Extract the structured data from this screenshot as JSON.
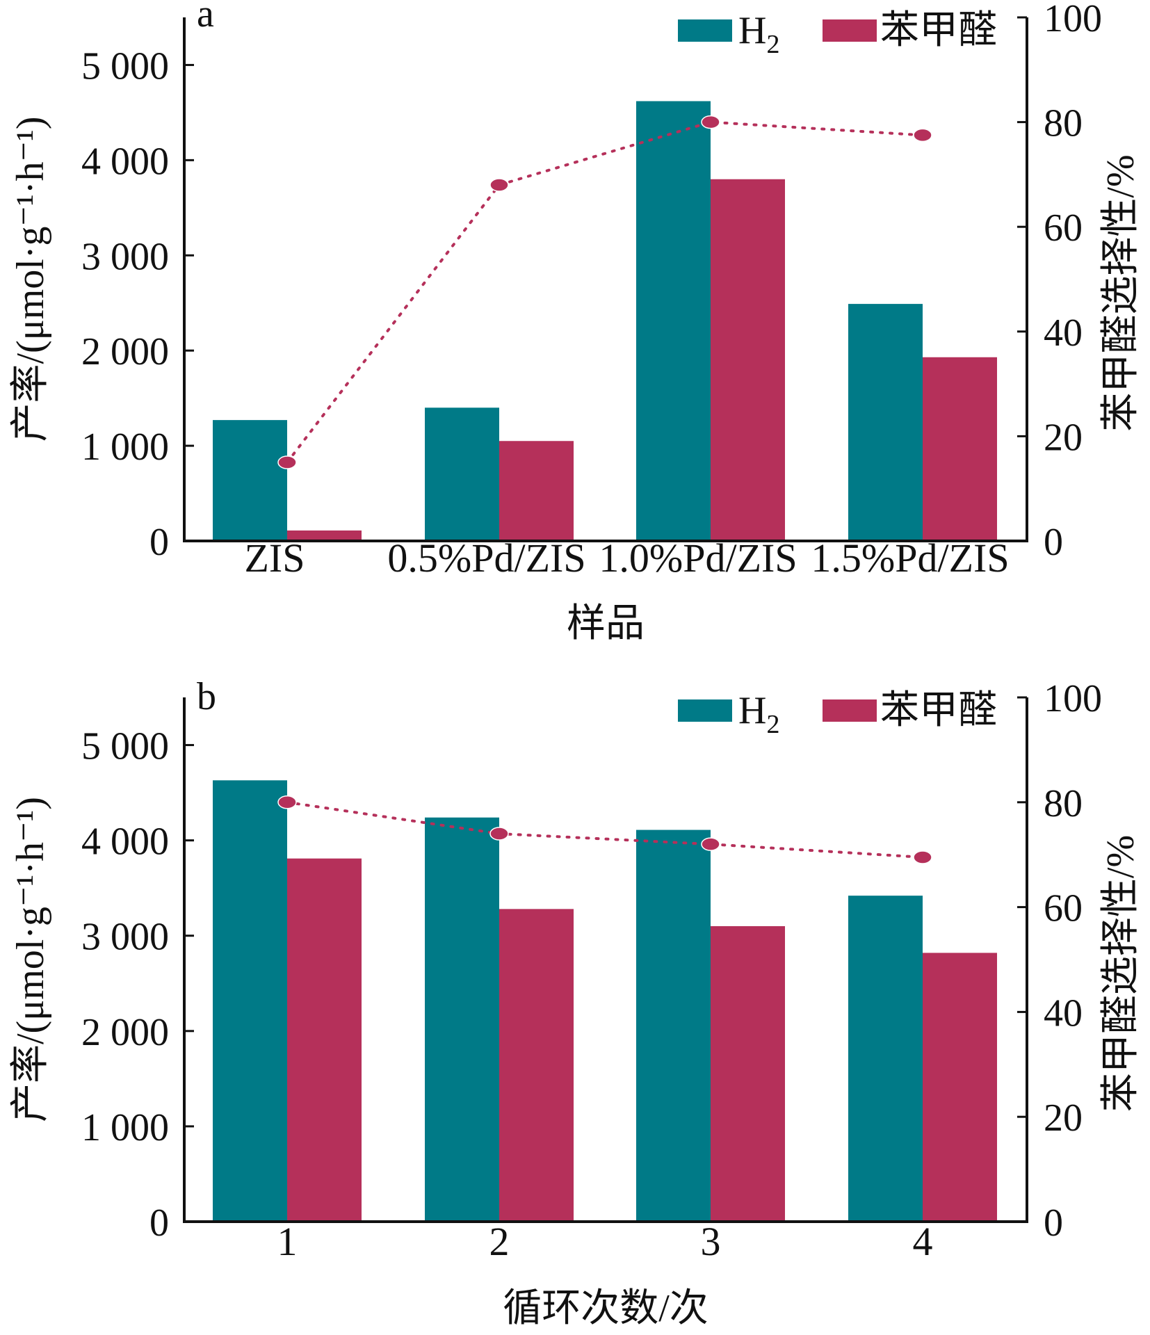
{
  "chart_data": [
    {
      "type": "bar",
      "panel_label": "a",
      "categories": [
        "ZIS",
        "0.5%Pd/ZIS",
        "1.0%Pd/ZIS",
        "1.5%Pd/ZIS"
      ],
      "series": [
        {
          "name": "H₂",
          "values": [
            1270,
            1400,
            4620,
            2490
          ],
          "color": "#007a87"
        },
        {
          "name": "苯甲醛",
          "values": [
            110,
            1050,
            3800,
            1930
          ],
          "color": "#b5305a"
        }
      ],
      "secondary_series": {
        "type": "line",
        "style": "dotted",
        "values": [
          15,
          68,
          80,
          77.5
        ],
        "color": "#b5305a"
      },
      "xlabel": "样品",
      "ylabel": "产率/(μmol·g⁻¹·h⁻¹)",
      "y2label": "苯甲醛选择性/%",
      "ylim": [
        0,
        5500
      ],
      "y2lim": [
        0,
        100
      ],
      "yticks": [
        "0",
        "1 000",
        "2 000",
        "3 000",
        "4 000",
        "5 000"
      ],
      "y2ticks": [
        "0",
        "20",
        "40",
        "60",
        "80",
        "100"
      ],
      "legend_position": "top-right",
      "grid": false
    },
    {
      "type": "bar",
      "panel_label": "b",
      "categories": [
        "1",
        "2",
        "3",
        "4"
      ],
      "series": [
        {
          "name": "H₂",
          "values": [
            4630,
            4240,
            4110,
            3420
          ],
          "color": "#007a87"
        },
        {
          "name": "苯甲醛",
          "values": [
            3810,
            3280,
            3100,
            2820
          ],
          "color": "#b5305a"
        }
      ],
      "secondary_series": {
        "type": "line",
        "style": "dotted",
        "values": [
          80,
          74,
          72,
          69.5
        ],
        "color": "#b5305a"
      },
      "xlabel": "循环次数/次",
      "ylabel": "产率/(μmol·g⁻¹·h⁻¹)",
      "y2label": "苯甲醛选择性/%",
      "ylim": [
        0,
        5500
      ],
      "y2lim": [
        0,
        100
      ],
      "yticks": [
        "0",
        "1 000",
        "2 000",
        "3 000",
        "4 000",
        "5 000"
      ],
      "y2ticks": [
        "0",
        "20",
        "40",
        "60",
        "80",
        "100"
      ],
      "legend_position": "top-right",
      "grid": false
    }
  ]
}
